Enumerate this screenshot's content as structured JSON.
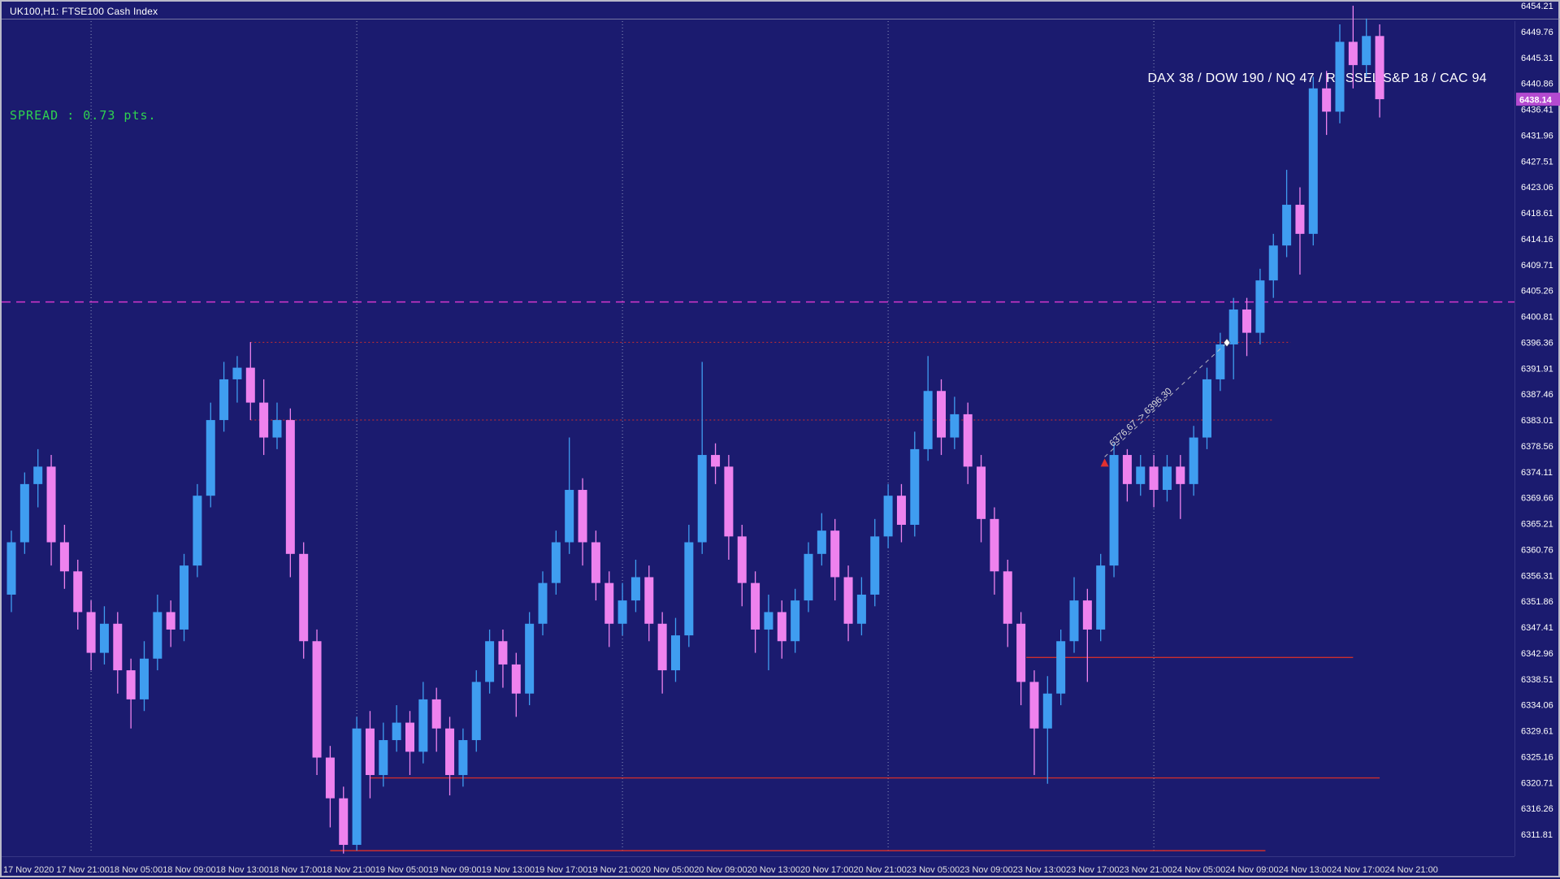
{
  "window": {
    "title": "UK100,H1: FTSE100 Cash Index"
  },
  "overlays": {
    "spread_label": "SPREAD : 0.73 pts.",
    "indices_label": "DAX 38 / DOW 190 / NQ 47 / RUSSEL S&P 18 / CAC 94"
  },
  "colors": {
    "background": "#1b1b6f",
    "bull": "#3f9df0",
    "bear": "#ee82ee",
    "axis_text": "#ffffff",
    "time_text": "#e2e2e2",
    "separator": "#9fa8c8",
    "current_price_bg": "#b44ad0",
    "current_price_text": "#ffffff",
    "hline_red": "#cc2e2e",
    "hline_magenta": "#c435c4",
    "annotation": "#c8c8c8"
  },
  "chart_data": {
    "type": "candlestick",
    "symbol": "UK100",
    "timeframe": "H1",
    "title": "UK100,H1: FTSE100 Cash Index",
    "current_price": "6438.14",
    "ohlc_format": [
      "open",
      "high",
      "low",
      "close"
    ],
    "price_ticks": [
      6454.21,
      6449.76,
      6445.31,
      6440.86,
      6436.41,
      6431.96,
      6427.51,
      6423.06,
      6418.61,
      6414.16,
      6409.71,
      6405.26,
      6400.81,
      6396.36,
      6391.91,
      6387.46,
      6383.01,
      6378.56,
      6374.11,
      6369.66,
      6365.21,
      6360.76,
      6356.31,
      6351.86,
      6347.41,
      6342.96,
      6338.51,
      6334.06,
      6329.61,
      6325.16,
      6320.71,
      6316.26,
      6311.81
    ],
    "time_labels": [
      {
        "index": 0,
        "label": "17 Nov 2020"
      },
      {
        "index": 4,
        "label": "17 Nov 21:00"
      },
      {
        "index": 8,
        "label": "18 Nov 05:00"
      },
      {
        "index": 12,
        "label": "18 Nov 09:00"
      },
      {
        "index": 16,
        "label": "18 Nov 13:00"
      },
      {
        "index": 20,
        "label": "18 Nov 17:00"
      },
      {
        "index": 24,
        "label": "18 Nov 21:00"
      },
      {
        "index": 28,
        "label": "19 Nov 05:00"
      },
      {
        "index": 32,
        "label": "19 Nov 09:00"
      },
      {
        "index": 36,
        "label": "19 Nov 13:00"
      },
      {
        "index": 40,
        "label": "19 Nov 17:00"
      },
      {
        "index": 44,
        "label": "19 Nov 21:00"
      },
      {
        "index": 48,
        "label": "20 Nov 05:00"
      },
      {
        "index": 52,
        "label": "20 Nov 09:00"
      },
      {
        "index": 56,
        "label": "20 Nov 13:00"
      },
      {
        "index": 60,
        "label": "20 Nov 17:00"
      },
      {
        "index": 64,
        "label": "20 Nov 21:00"
      },
      {
        "index": 68,
        "label": "23 Nov 05:00"
      },
      {
        "index": 72,
        "label": "23 Nov 09:00"
      },
      {
        "index": 76,
        "label": "23 Nov 13:00"
      },
      {
        "index": 80,
        "label": "23 Nov 17:00"
      },
      {
        "index": 84,
        "label": "23 Nov 21:00"
      },
      {
        "index": 88,
        "label": "24 Nov 05:00"
      },
      {
        "index": 92,
        "label": "24 Nov 09:00"
      },
      {
        "index": 96,
        "label": "24 Nov 13:00"
      },
      {
        "index": 100,
        "label": "24 Nov 17:00"
      },
      {
        "index": 104,
        "label": "24 Nov 21:00"
      }
    ],
    "day_separators": [
      6,
      26,
      46,
      66,
      86
    ],
    "hlines": [
      {
        "price": 6403.3,
        "color_key": "magenta",
        "style": "longdash",
        "full_width": true,
        "from_index": 0,
        "to_index": 113
      },
      {
        "price": 6396.36,
        "color_key": "red",
        "style": "dot",
        "full_width": false,
        "from_index": 18,
        "to_index": 96.3
      },
      {
        "price": 6383.01,
        "color_key": "red",
        "style": "dot",
        "full_width": false,
        "from_index": 18,
        "to_index": 95
      },
      {
        "price": 6342.2,
        "color_key": "red",
        "style": "solid",
        "full_width": false,
        "from_index": 76.4,
        "to_index": 101
      },
      {
        "price": 6321.5,
        "color_key": "red",
        "style": "solid",
        "full_width": false,
        "from_index": 27,
        "to_index": 103
      },
      {
        "price": 6309.0,
        "color_key": "red",
        "style": "solid",
        "full_width": false,
        "from_index": 24,
        "to_index": 94.4
      }
    ],
    "trend_annotation": {
      "text": "6376.67 -> 6396.30",
      "from": {
        "index": 82.3,
        "price": 6376.67
      },
      "to": {
        "index": 91.5,
        "price": 6396.3
      }
    },
    "candles": [
      [
        6353,
        6364,
        6350,
        6362
      ],
      [
        6362,
        6374,
        6360,
        6372
      ],
      [
        6372,
        6378,
        6368,
        6375
      ],
      [
        6375,
        6377,
        6358,
        6362
      ],
      [
        6362,
        6365,
        6354,
        6357
      ],
      [
        6357,
        6359,
        6347,
        6350
      ],
      [
        6350,
        6352,
        6340,
        6343
      ],
      [
        6343,
        6351,
        6341,
        6348
      ],
      [
        6348,
        6350,
        6336,
        6340
      ],
      [
        6340,
        6342,
        6330,
        6335
      ],
      [
        6335,
        6345,
        6333,
        6342
      ],
      [
        6342,
        6353,
        6340,
        6350
      ],
      [
        6350,
        6352,
        6344,
        6347
      ],
      [
        6347,
        6360,
        6345,
        6358
      ],
      [
        6358,
        6372,
        6356,
        6370
      ],
      [
        6370,
        6386,
        6368,
        6383
      ],
      [
        6383,
        6393,
        6381,
        6390
      ],
      [
        6390,
        6394,
        6386,
        6392
      ],
      [
        6392,
        6396.4,
        6383,
        6386
      ],
      [
        6386,
        6390,
        6377,
        6380
      ],
      [
        6380,
        6386,
        6378,
        6383
      ],
      [
        6383,
        6385,
        6356,
        6360
      ],
      [
        6360,
        6362,
        6342,
        6345
      ],
      [
        6345,
        6347,
        6322,
        6325
      ],
      [
        6325,
        6327,
        6313,
        6318
      ],
      [
        6318,
        6320,
        6308.5,
        6310
      ],
      [
        6310,
        6332,
        6309,
        6330
      ],
      [
        6330,
        6333,
        6318,
        6322
      ],
      [
        6322,
        6331,
        6320,
        6328
      ],
      [
        6328,
        6334,
        6326,
        6331
      ],
      [
        6331,
        6333,
        6322,
        6326
      ],
      [
        6326,
        6338,
        6324,
        6335
      ],
      [
        6335,
        6337,
        6326,
        6330
      ],
      [
        6330,
        6332,
        6318.5,
        6322
      ],
      [
        6322,
        6330,
        6320,
        6328
      ],
      [
        6328,
        6340,
        6326,
        6338
      ],
      [
        6338,
        6347,
        6336,
        6345
      ],
      [
        6345,
        6347,
        6337,
        6341
      ],
      [
        6341,
        6343,
        6332,
        6336
      ],
      [
        6336,
        6350,
        6334,
        6348
      ],
      [
        6348,
        6357,
        6346,
        6355
      ],
      [
        6355,
        6364,
        6353,
        6362
      ],
      [
        6362,
        6380,
        6360,
        6371
      ],
      [
        6371,
        6373,
        6358,
        6362
      ],
      [
        6362,
        6364,
        6352,
        6355
      ],
      [
        6355,
        6357,
        6344,
        6348
      ],
      [
        6348,
        6355,
        6346,
        6352
      ],
      [
        6352,
        6359,
        6350,
        6356
      ],
      [
        6356,
        6358,
        6345,
        6348
      ],
      [
        6348,
        6350,
        6336,
        6340
      ],
      [
        6340,
        6349,
        6338,
        6346
      ],
      [
        6346,
        6365,
        6344,
        6362
      ],
      [
        6362,
        6393,
        6360,
        6377
      ],
      [
        6377,
        6379,
        6372,
        6375
      ],
      [
        6375,
        6377,
        6359,
        6363
      ],
      [
        6363,
        6365,
        6351,
        6355
      ],
      [
        6355,
        6357,
        6343,
        6347
      ],
      [
        6347,
        6353,
        6340,
        6350
      ],
      [
        6350,
        6352,
        6342,
        6345
      ],
      [
        6345,
        6354,
        6343,
        6352
      ],
      [
        6352,
        6362,
        6350,
        6360
      ],
      [
        6360,
        6367,
        6358,
        6364
      ],
      [
        6364,
        6366,
        6352,
        6356
      ],
      [
        6356,
        6358,
        6345,
        6348
      ],
      [
        6348,
        6356,
        6346,
        6353
      ],
      [
        6353,
        6366,
        6351,
        6363
      ],
      [
        6363,
        6372,
        6361,
        6370
      ],
      [
        6370,
        6372,
        6362,
        6365
      ],
      [
        6365,
        6381,
        6363,
        6378
      ],
      [
        6378,
        6394,
        6376,
        6388
      ],
      [
        6388,
        6390,
        6377,
        6380
      ],
      [
        6380,
        6387,
        6378,
        6384
      ],
      [
        6384,
        6386,
        6372,
        6375
      ],
      [
        6375,
        6377,
        6362,
        6366
      ],
      [
        6366,
        6368,
        6353,
        6357
      ],
      [
        6357,
        6359,
        6344,
        6348
      ],
      [
        6348,
        6350,
        6334,
        6338
      ],
      [
        6338,
        6340,
        6322,
        6330
      ],
      [
        6330,
        6339,
        6320.5,
        6336
      ],
      [
        6336,
        6347,
        6334,
        6345
      ],
      [
        6345,
        6356,
        6343,
        6352
      ],
      [
        6352,
        6354,
        6338,
        6347
      ],
      [
        6347,
        6360,
        6345,
        6358
      ],
      [
        6358,
        6379,
        6356,
        6377
      ],
      [
        6377,
        6378,
        6369,
        6372
      ],
      [
        6372,
        6377,
        6370,
        6375
      ],
      [
        6375,
        6377,
        6368,
        6371
      ],
      [
        6371,
        6377,
        6369,
        6375
      ],
      [
        6375,
        6377,
        6366,
        6372
      ],
      [
        6372,
        6382,
        6370,
        6380
      ],
      [
        6380,
        6392,
        6378,
        6390
      ],
      [
        6390,
        6398,
        6388,
        6396
      ],
      [
        6396,
        6404,
        6390,
        6402
      ],
      [
        6402,
        6404,
        6394,
        6398
      ],
      [
        6398,
        6409,
        6396,
        6407
      ],
      [
        6407,
        6415,
        6404,
        6413
      ],
      [
        6413,
        6426,
        6411,
        6420
      ],
      [
        6420,
        6423,
        6408,
        6415
      ],
      [
        6415,
        6442,
        6413,
        6440
      ],
      [
        6440,
        6443,
        6432,
        6436
      ],
      [
        6436,
        6451,
        6434,
        6448
      ],
      [
        6448,
        6454.2,
        6440,
        6444
      ],
      [
        6444,
        6452,
        6442,
        6449
      ],
      [
        6449,
        6451,
        6435,
        6438.14
      ]
    ]
  }
}
